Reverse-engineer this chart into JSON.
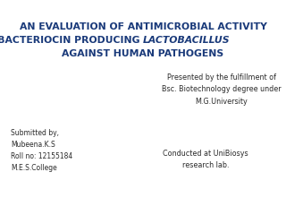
{
  "background_color": "#ffffff",
  "title_line1": "AN EVALUATION OF ANTIMICROBIAL ACTIVITY",
  "title_line2_normal": "OF BACTERIOCIN PRODUCING ",
  "title_line2_italic": "LACTOBACILLUS",
  "title_line3": "AGAINST HUMAN PATHOGENS",
  "title_color": "#1a3a7a",
  "title_fontsize": 7.8,
  "presented_line1": "Presented by the fulfillment of",
  "presented_line2": "Bsc. Biotechnology degree under",
  "presented_line3": "M.G.University",
  "presented_color": "#2a2a2a",
  "presented_fontsize": 5.8,
  "conducted_line1": "Conducted at UniBiosys",
  "conducted_line2": "research lab.",
  "conducted_color": "#2a2a2a",
  "conducted_fontsize": 5.8,
  "submitted_line1": "Submitted by,",
  "submitted_line2": "Mubeena.K.S",
  "submitted_line3": "Roll no: 12155184",
  "submitted_line4": "M.E.S.College",
  "submitted_color": "#2a2a2a",
  "submitted_fontsize": 5.5
}
